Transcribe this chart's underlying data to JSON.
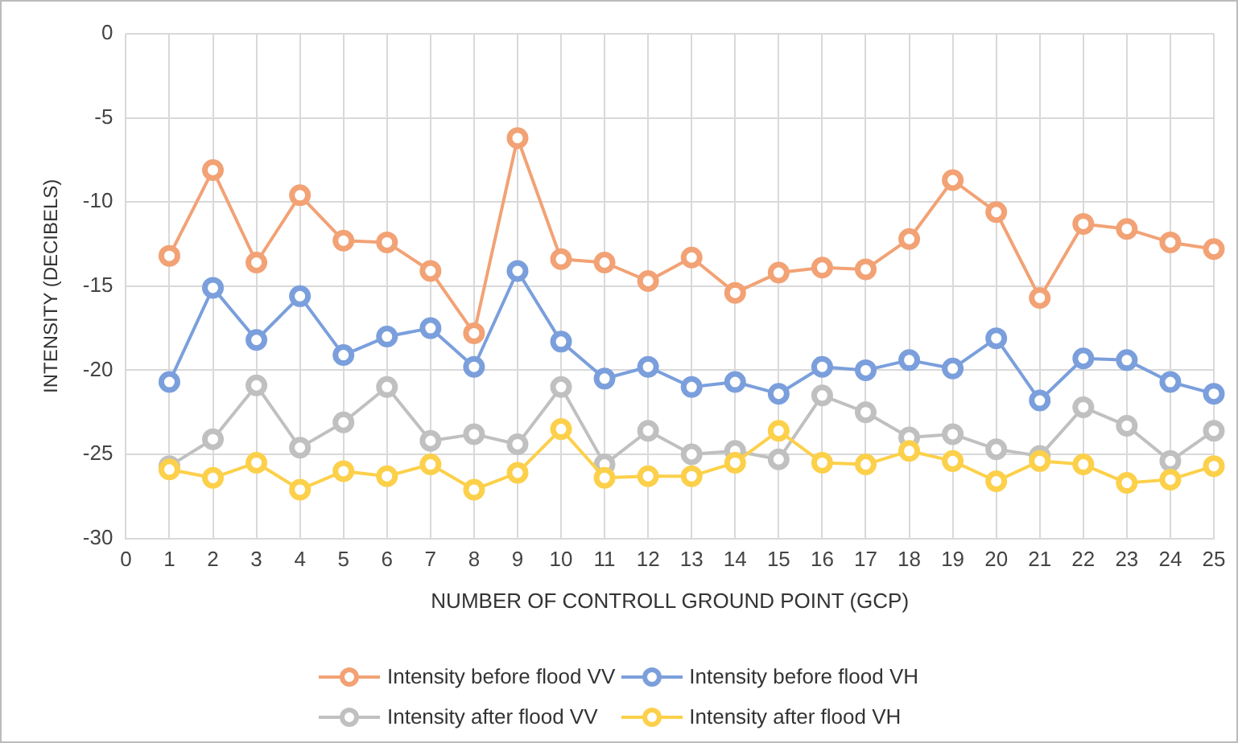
{
  "chart_data": {
    "type": "line",
    "xlabel": "NUMBER OF CONTROLL GROUND POINT (GCP)",
    "ylabel": "INTENSITY (DECIBELS)",
    "x": [
      1,
      2,
      3,
      4,
      5,
      6,
      7,
      8,
      9,
      10,
      11,
      12,
      13,
      14,
      15,
      16,
      17,
      18,
      19,
      20,
      21,
      22,
      23,
      24,
      25
    ],
    "xlim": [
      0,
      25
    ],
    "xticks": [
      0,
      1,
      2,
      3,
      4,
      5,
      6,
      7,
      8,
      9,
      10,
      11,
      12,
      13,
      14,
      15,
      16,
      17,
      18,
      19,
      20,
      21,
      22,
      23,
      24,
      25
    ],
    "ylim": [
      -30,
      0
    ],
    "yticks": [
      -30,
      -25,
      -20,
      -15,
      -10,
      -5,
      0
    ],
    "grid": true,
    "legend": "bottom",
    "marker": "circle",
    "line_style": "solid",
    "series": [
      {
        "name": "Intensity before flood VV",
        "color": "#f2a275",
        "values": [
          -13.2,
          -8.1,
          -13.6,
          -9.6,
          -12.3,
          -12.4,
          -14.1,
          -17.8,
          -6.2,
          -13.4,
          -13.6,
          -14.7,
          -13.3,
          -15.4,
          -14.2,
          -13.9,
          -14.0,
          -12.2,
          -8.7,
          -10.6,
          -15.7,
          -11.3,
          -11.6,
          -12.4,
          -12.8
        ]
      },
      {
        "name": "Intensity before flood VH",
        "color": "#7b9fdc",
        "values": [
          -20.7,
          -15.1,
          -18.2,
          -15.6,
          -19.1,
          -18.0,
          -17.5,
          -19.8,
          -14.1,
          -18.3,
          -20.5,
          -19.8,
          -21.0,
          -20.7,
          -21.4,
          -19.8,
          -20.0,
          -19.4,
          -19.9,
          -18.1,
          -21.8,
          -19.3,
          -19.4,
          -20.7,
          -21.4
        ]
      },
      {
        "name": "Intensity after flood VV",
        "color": "#c0c0c0",
        "values": [
          -25.7,
          -24.1,
          -20.9,
          -24.6,
          -23.1,
          -21.0,
          -24.2,
          -23.8,
          -24.4,
          -21.0,
          -25.6,
          -23.6,
          -25.0,
          -24.8,
          -25.3,
          -21.5,
          -22.5,
          -24.0,
          -23.8,
          -24.7,
          -25.1,
          -22.2,
          -23.3,
          -25.4,
          -23.6
        ]
      },
      {
        "name": "Intensity after flood VH",
        "color": "#fcd04a",
        "values": [
          -25.9,
          -26.4,
          -25.5,
          -27.1,
          -26.0,
          -26.3,
          -25.6,
          -27.1,
          -26.1,
          -23.5,
          -26.4,
          -26.3,
          -26.3,
          -25.5,
          -23.6,
          -25.5,
          -25.6,
          -24.8,
          -25.4,
          -26.6,
          -25.4,
          -25.6,
          -26.7,
          -26.5,
          -25.7
        ]
      }
    ]
  }
}
